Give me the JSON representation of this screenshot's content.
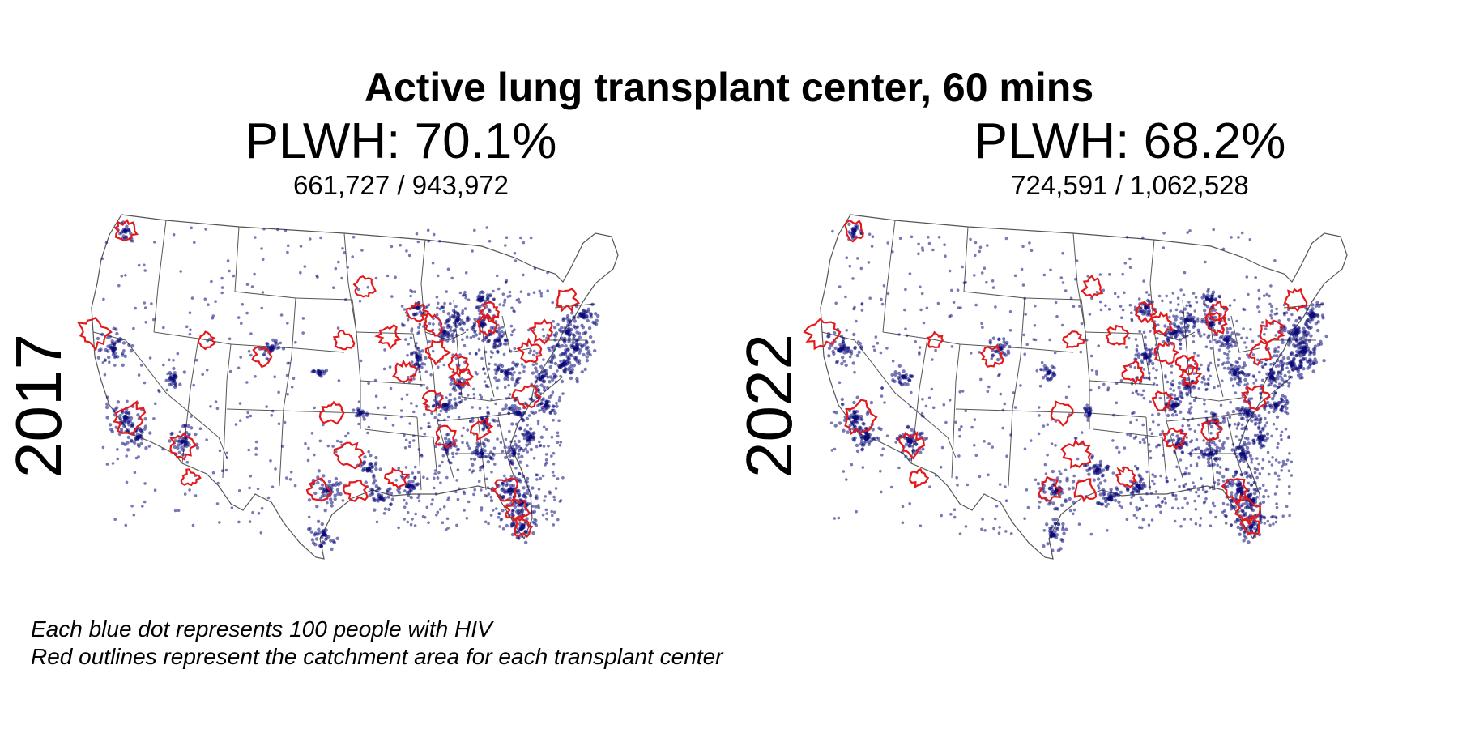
{
  "title": "Active lung transplant center, 60 mins",
  "panels": [
    {
      "year": "2017",
      "pct_label": "PLWH: 70.1%",
      "ratio_label": "661,727 / 943,972",
      "pct": 70.1,
      "covered": 661727,
      "total": 943972
    },
    {
      "year": "2022",
      "pct_label": "PLWH: 68.2%",
      "ratio_label": "724,591 / 1,062,528",
      "pct": 68.2,
      "covered": 724591,
      "total": 1062528
    }
  ],
  "legend": {
    "line1": "Each blue dot represents 100 people with HIV",
    "line2": "Red outlines represent the catchment area for each transplant center"
  },
  "colors": {
    "dot": "#0b0b7a",
    "catchment": "#e3191c",
    "border": "#555555"
  },
  "chart_data": {
    "type": "map",
    "region": "Contiguous United States",
    "dot_unit": 100,
    "catchment_minutes": 60
  }
}
